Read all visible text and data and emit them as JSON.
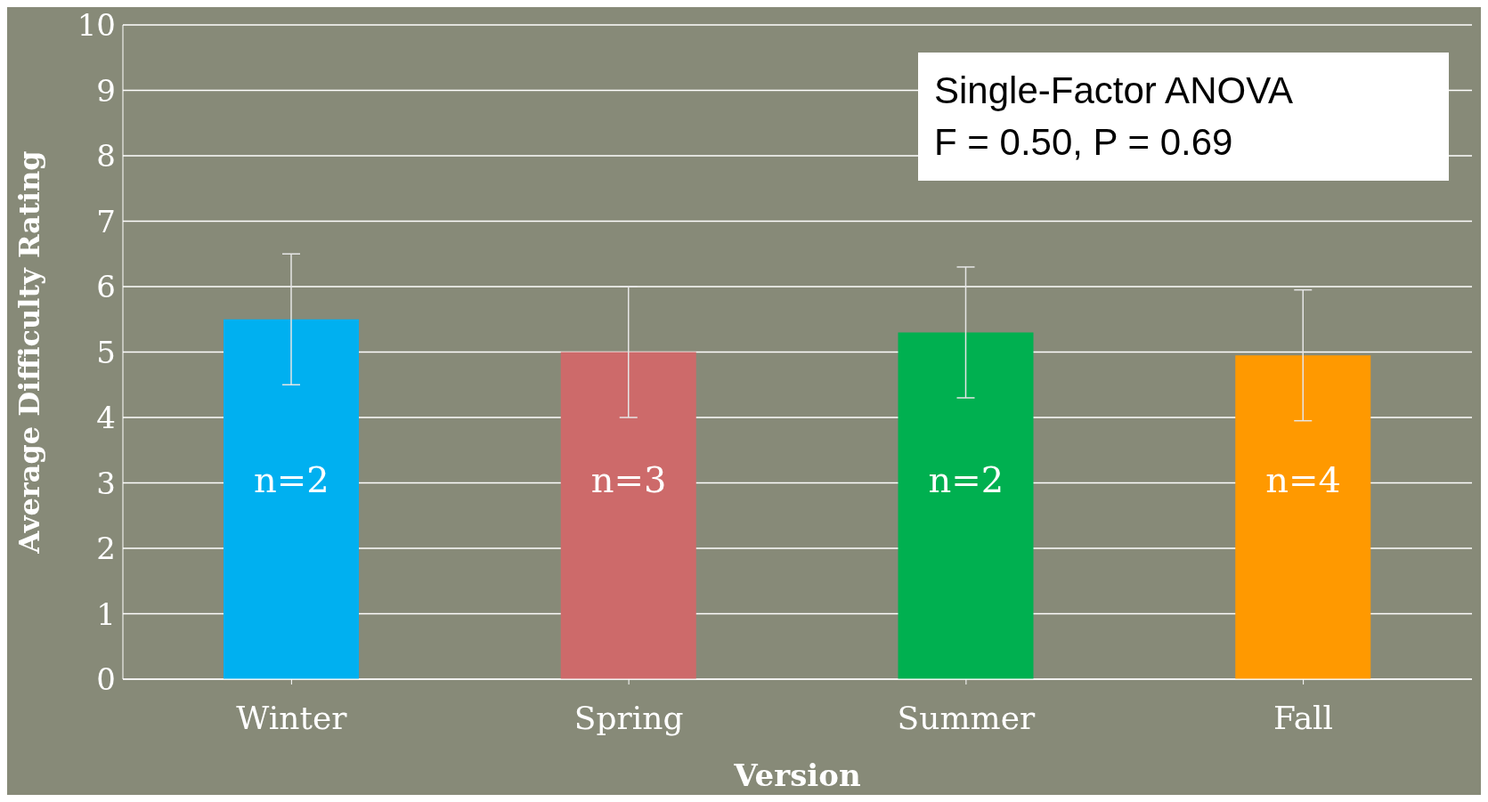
{
  "chart_data": {
    "type": "bar",
    "xlabel": "Version",
    "ylabel": "Average Difficulty Rating",
    "categories": [
      "Winter",
      "Spring",
      "Summer",
      "Fall"
    ],
    "values": [
      5.5,
      5.0,
      5.3,
      4.95
    ],
    "errors": [
      1.0,
      1.0,
      1.0,
      1.0
    ],
    "colors": [
      "#00b0f0",
      "#cd6a6a",
      "#00b050",
      "#ff9900"
    ],
    "ylim": [
      0,
      10
    ],
    "yticks": [
      0,
      1,
      2,
      3,
      4,
      5,
      6,
      7,
      8,
      9,
      10
    ],
    "grid": "y",
    "annotations": [
      "Single-Factor ANOVA",
      "F = 0.50, P = 0.69",
      "n=2",
      "n=3",
      "n=2",
      "n=4"
    ]
  }
}
